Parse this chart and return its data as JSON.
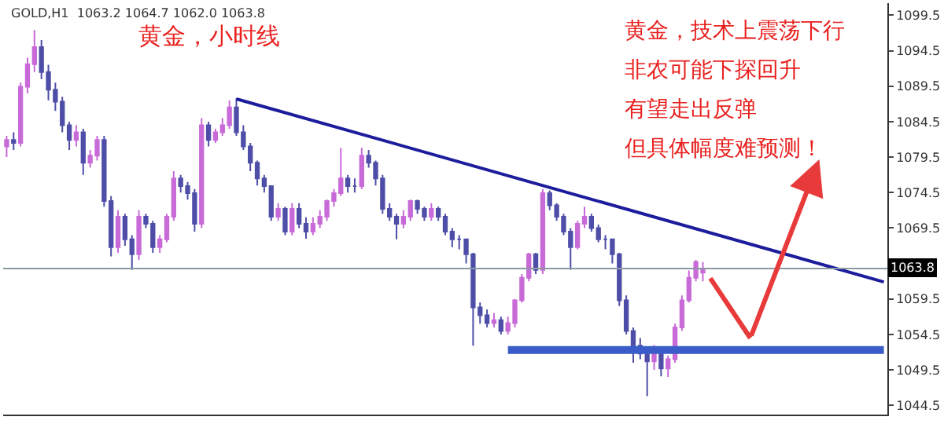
{
  "chart_data": {
    "type": "candlestick",
    "title": "黄金，小时线",
    "annotations": [
      "GOLD,H1  1063.2 1064.7 1062.0 1063.8",
      "黄金，技术上震荡下行",
      "非农可能下探回升",
      "有望走出反弹",
      "但具体幅度难预测！"
    ],
    "categories": [
      null,
      null,
      null,
      null,
      null,
      null,
      null,
      null,
      null,
      null,
      null,
      null,
      null,
      null,
      null,
      null,
      null,
      null,
      null,
      null,
      null,
      null,
      null,
      null,
      null,
      null,
      null,
      null,
      null,
      null,
      null,
      null,
      null,
      null,
      null,
      null,
      null,
      null,
      null,
      null,
      null,
      null,
      null,
      null,
      null,
      null,
      null,
      null,
      null,
      null,
      null,
      null,
      null,
      null,
      null,
      null,
      null,
      null,
      null,
      null,
      null,
      null,
      null,
      null,
      null,
      null,
      null,
      null,
      null,
      null,
      null,
      null,
      null,
      null,
      null,
      null,
      null,
      null,
      null,
      null,
      null,
      null,
      null,
      null,
      null,
      null,
      null,
      null,
      null,
      null,
      null,
      null,
      null,
      null,
      null,
      null,
      null,
      null,
      null,
      null,
      null,
      null,
      null,
      null,
      null,
      null,
      null,
      null,
      null,
      null,
      null,
      null,
      null,
      null,
      null,
      null,
      null,
      null,
      null,
      null,
      null,
      null,
      null,
      null,
      null,
      null,
      null
    ],
    "ohlc": [
      [
        1081.0,
        1082.5,
        1079.5,
        1081.9
      ],
      [
        1081.9,
        1083.0,
        1080.5,
        1081.5
      ],
      [
        1081.5,
        1090.0,
        1081.0,
        1089.4
      ],
      [
        1089.4,
        1093.5,
        1088.5,
        1092.6
      ],
      [
        1092.6,
        1097.4,
        1091.5,
        1095.0
      ],
      [
        1095.0,
        1096.0,
        1090.5,
        1091.5
      ],
      [
        1091.5,
        1092.5,
        1087.5,
        1089.0
      ],
      [
        1089.0,
        1090.0,
        1086.0,
        1087.3
      ],
      [
        1087.3,
        1088.0,
        1083.0,
        1084.0
      ],
      [
        1084.0,
        1084.5,
        1080.5,
        1081.9
      ],
      [
        1081.9,
        1084.0,
        1081.0,
        1083.0
      ],
      [
        1083.0,
        1083.5,
        1077.0,
        1078.7
      ],
      [
        1078.7,
        1080.5,
        1078.0,
        1079.7
      ],
      [
        1079.7,
        1082.5,
        1079.0,
        1081.9
      ],
      [
        1081.9,
        1082.5,
        1072.5,
        1073.3
      ],
      [
        1073.3,
        1074.0,
        1065.5,
        1066.8
      ],
      [
        1066.8,
        1072.0,
        1066.0,
        1071.1
      ],
      [
        1071.1,
        1071.5,
        1067.0,
        1067.9
      ],
      [
        1067.9,
        1068.5,
        1063.6,
        1065.8
      ],
      [
        1065.8,
        1072.0,
        1065.0,
        1071.1
      ],
      [
        1071.1,
        1071.5,
        1069.5,
        1070.1
      ],
      [
        1070.1,
        1070.5,
        1066.0,
        1066.8
      ],
      [
        1066.8,
        1068.5,
        1066.0,
        1067.9
      ],
      [
        1067.9,
        1071.5,
        1067.5,
        1071.1
      ],
      [
        1071.1,
        1077.5,
        1070.5,
        1076.5
      ],
      [
        1076.5,
        1077.0,
        1074.5,
        1075.4
      ],
      [
        1075.4,
        1076.0,
        1073.5,
        1074.4
      ],
      [
        1074.4,
        1075.0,
        1069.0,
        1070.1
      ],
      [
        1070.1,
        1085.0,
        1069.5,
        1084.0
      ],
      [
        1084.0,
        1084.5,
        1081.0,
        1081.9
      ],
      [
        1081.9,
        1083.5,
        1081.5,
        1083.0
      ],
      [
        1083.0,
        1085.0,
        1082.5,
        1084.0
      ],
      [
        1084.0,
        1087.5,
        1083.5,
        1086.5
      ],
      [
        1086.5,
        1087.8,
        1082.5,
        1083.0
      ],
      [
        1083.0,
        1084.0,
        1080.5,
        1081.0
      ],
      [
        1081.0,
        1081.5,
        1077.5,
        1078.7
      ],
      [
        1078.7,
        1079.0,
        1075.5,
        1076.5
      ],
      [
        1076.5,
        1077.0,
        1074.5,
        1075.4
      ],
      [
        1075.4,
        1075.5,
        1070.5,
        1071.1
      ],
      [
        1071.1,
        1073.0,
        1070.5,
        1072.2
      ],
      [
        1072.2,
        1072.5,
        1068.5,
        1069.0
      ],
      [
        1069.0,
        1073.0,
        1068.5,
        1072.2
      ],
      [
        1072.2,
        1073.0,
        1069.5,
        1070.1
      ],
      [
        1070.1,
        1071.0,
        1068.0,
        1069.0
      ],
      [
        1069.0,
        1071.0,
        1068.5,
        1070.1
      ],
      [
        1070.1,
        1072.0,
        1069.5,
        1071.1
      ],
      [
        1071.1,
        1073.5,
        1070.5,
        1073.3
      ],
      [
        1073.3,
        1075.0,
        1072.5,
        1074.4
      ],
      [
        1074.4,
        1080.8,
        1074.0,
        1076.5
      ],
      [
        1076.5,
        1077.0,
        1074.5,
        1075.4
      ],
      [
        1075.4,
        1076.5,
        1074.5,
        1075.4
      ],
      [
        1075.4,
        1080.8,
        1075.0,
        1079.7
      ],
      [
        1079.7,
        1080.5,
        1078.0,
        1078.7
      ],
      [
        1078.7,
        1079.0,
        1075.5,
        1076.5
      ],
      [
        1076.5,
        1077.0,
        1071.5,
        1072.2
      ],
      [
        1072.2,
        1073.0,
        1070.5,
        1071.1
      ],
      [
        1071.1,
        1071.5,
        1067.9,
        1070.1
      ],
      [
        1070.1,
        1072.0,
        1069.5,
        1071.1
      ],
      [
        1071.1,
        1073.5,
        1070.5,
        1073.3
      ],
      [
        1073.3,
        1073.5,
        1071.5,
        1072.2
      ],
      [
        1072.2,
        1072.5,
        1070.5,
        1071.1
      ],
      [
        1071.1,
        1073.0,
        1070.5,
        1072.2
      ],
      [
        1072.2,
        1072.5,
        1070.5,
        1071.1
      ],
      [
        1071.1,
        1071.5,
        1068.5,
        1069.0
      ],
      [
        1069.0,
        1069.5,
        1066.8,
        1067.9
      ],
      [
        1067.9,
        1068.5,
        1066.5,
        1067.9
      ],
      [
        1067.9,
        1068.0,
        1064.5,
        1065.8
      ],
      [
        1065.8,
        1066.0,
        1052.9,
        1058.3
      ],
      [
        1058.3,
        1059.0,
        1056.0,
        1057.2
      ],
      [
        1057.2,
        1058.0,
        1055.5,
        1056.1
      ],
      [
        1056.1,
        1057.5,
        1055.5,
        1056.5
      ],
      [
        1056.5,
        1057.0,
        1054.5,
        1055.0
      ],
      [
        1055.0,
        1057.0,
        1054.5,
        1056.1
      ],
      [
        1056.1,
        1059.5,
        1055.5,
        1059.3
      ],
      [
        1059.3,
        1063.0,
        1059.0,
        1062.5
      ],
      [
        1062.5,
        1066.0,
        1062.0,
        1065.8
      ],
      [
        1065.8,
        1066.0,
        1063.0,
        1063.6
      ],
      [
        1063.6,
        1075.0,
        1063.0,
        1074.4
      ],
      [
        1074.4,
        1074.8,
        1072.0,
        1072.7
      ],
      [
        1072.7,
        1073.0,
        1070.5,
        1071.1
      ],
      [
        1071.1,
        1071.5,
        1068.5,
        1069.0
      ],
      [
        1069.0,
        1069.5,
        1063.6,
        1066.8
      ],
      [
        1066.8,
        1070.5,
        1066.5,
        1070.1
      ],
      [
        1070.1,
        1072.5,
        1069.5,
        1071.1
      ],
      [
        1071.1,
        1071.5,
        1069.0,
        1069.5
      ],
      [
        1069.5,
        1070.0,
        1067.5,
        1067.9
      ],
      [
        1067.9,
        1068.5,
        1066.5,
        1067.9
      ],
      [
        1067.9,
        1068.0,
        1064.5,
        1065.8
      ],
      [
        1065.8,
        1066.0,
        1058.5,
        1059.3
      ],
      [
        1059.3,
        1060.0,
        1054.5,
        1055.0
      ],
      [
        1055.0,
        1055.5,
        1050.5,
        1052.9
      ],
      [
        1052.9,
        1054.0,
        1051.0,
        1051.8
      ],
      [
        1051.8,
        1052.5,
        1045.8,
        1050.7
      ],
      [
        1050.7,
        1053.0,
        1049.5,
        1051.8
      ],
      [
        1051.8,
        1052.0,
        1048.6,
        1049.7
      ],
      [
        1049.7,
        1051.5,
        1048.5,
        1051.0
      ],
      [
        1051.0,
        1056.0,
        1050.5,
        1055.5
      ],
      [
        1055.5,
        1060.0,
        1055.0,
        1059.3
      ],
      [
        1059.3,
        1063.5,
        1059.0,
        1062.5
      ],
      [
        1062.5,
        1065.0,
        1062.0,
        1064.7
      ],
      [
        1063.2,
        1064.7,
        1062.0,
        1063.8
      ],
      null,
      null,
      null,
      null,
      null,
      null,
      null,
      null,
      null,
      null,
      null,
      null,
      null,
      null,
      null,
      null,
      null,
      null,
      null,
      null,
      null,
      null,
      null,
      null,
      null,
      null
    ],
    "series": [
      {
        "type": "line",
        "color": "#1c1c9c",
        "values": [
          null,
          null,
          null,
          null,
          null,
          null,
          null,
          null,
          null,
          null,
          null,
          null,
          null,
          null,
          null,
          null,
          null,
          null,
          null,
          null,
          null,
          null,
          null,
          null,
          null,
          null,
          null,
          null,
          null,
          null,
          null,
          null,
          null,
          1087.7,
          null,
          null,
          null,
          null,
          null,
          null,
          null,
          null,
          null,
          null,
          null,
          null,
          null,
          null,
          null,
          null,
          null,
          null,
          null,
          null,
          null,
          null,
          null,
          null,
          null,
          null,
          null,
          null,
          null,
          null,
          null,
          null,
          null,
          null,
          null,
          null,
          null,
          null,
          null,
          null,
          null,
          null,
          null,
          null,
          null,
          null,
          null,
          null,
          null,
          null,
          null,
          null,
          null,
          null,
          null,
          null,
          null,
          null,
          null,
          null,
          null,
          null,
          null,
          null,
          null,
          null,
          null,
          null,
          null,
          null,
          null,
          null,
          null,
          null,
          null,
          null,
          null,
          null,
          null,
          null,
          null,
          null,
          null,
          null,
          null,
          null,
          null,
          null,
          null,
          null,
          null,
          null,
          1061.9
        ]
      },
      {
        "type": "line",
        "color": "#3a5cc8",
        "values": [
          null,
          null,
          null,
          null,
          null,
          null,
          null,
          null,
          null,
          null,
          null,
          null,
          null,
          null,
          null,
          null,
          null,
          null,
          null,
          null,
          null,
          null,
          null,
          null,
          null,
          null,
          null,
          null,
          null,
          null,
          null,
          null,
          null,
          null,
          null,
          null,
          null,
          null,
          null,
          null,
          null,
          null,
          null,
          null,
          null,
          null,
          null,
          null,
          null,
          null,
          null,
          null,
          null,
          null,
          null,
          null,
          null,
          null,
          null,
          null,
          null,
          null,
          null,
          null,
          null,
          null,
          null,
          null,
          null,
          null,
          null,
          null,
          1052.3,
          null,
          null,
          null,
          null,
          null,
          null,
          null,
          null,
          null,
          null,
          null,
          null,
          null,
          null,
          null,
          null,
          null,
          null,
          null,
          null,
          null,
          null,
          null,
          null,
          null,
          null,
          null,
          null,
          null,
          null,
          null,
          null,
          null,
          null,
          null,
          null,
          null,
          null,
          null,
          null,
          null,
          null,
          null,
          null,
          null,
          null,
          null,
          null,
          null,
          null,
          null,
          null,
          null,
          1052.3
        ]
      }
    ],
    "ref_lines": [
      {
        "axis": "y",
        "value": 1063.8,
        "label": "1063.8",
        "color": "#8a9aa0"
      }
    ],
    "ylim": [
      1043.2,
      1101.2
    ],
    "yticks": [
      1044.5,
      1049.5,
      1054.5,
      1059.5,
      {
        "value": 1064.5,
        "label": null
      },
      1069.5,
      1074.5,
      1079.5,
      1084.5,
      1089.5,
      1094.5,
      1099.5
    ],
    "tick_labels": "y"
  }
}
